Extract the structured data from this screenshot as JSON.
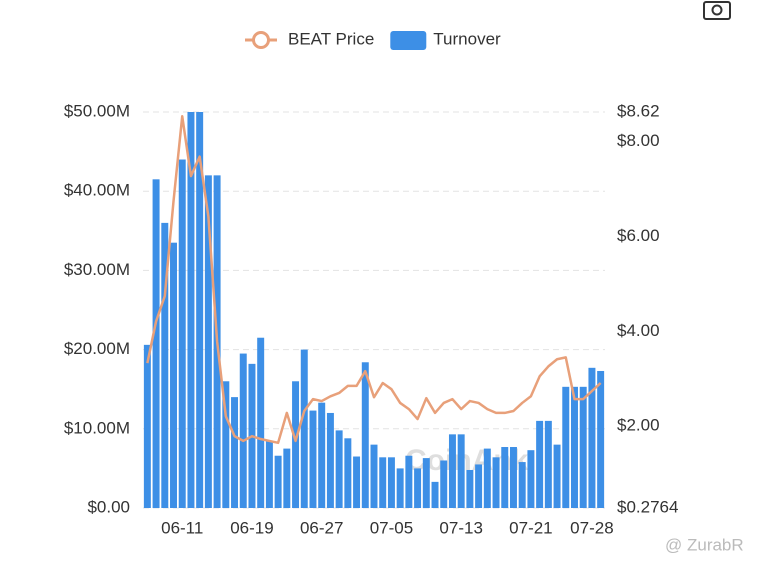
{
  "chart_data": {
    "type": "bar",
    "legend": "top",
    "watermark": "CoinAnk",
    "credit": "@ ZurabR",
    "categories": [
      null,
      null,
      null,
      null,
      "06-11",
      null,
      null,
      null,
      null,
      null,
      null,
      null,
      "06-19",
      null,
      null,
      null,
      null,
      null,
      null,
      null,
      "06-27",
      null,
      null,
      null,
      null,
      null,
      null,
      null,
      "07-05",
      null,
      null,
      null,
      null,
      null,
      null,
      null,
      "07-13",
      null,
      null,
      null,
      null,
      null,
      null,
      null,
      "07-21",
      null,
      null,
      null,
      null,
      null,
      null,
      "07-28",
      null
    ],
    "series": [
      {
        "name": "BEAT Price",
        "type": "line",
        "axis": "y2",
        "color": "#e8a07a",
        "values": [
          3.33,
          4.21,
          4.74,
          6.74,
          8.53,
          7.27,
          7.68,
          6.42,
          3.79,
          2.21,
          1.79,
          1.69,
          1.79,
          1.73,
          1.69,
          1.65,
          2.28,
          1.69,
          2.32,
          2.57,
          2.53,
          2.63,
          2.7,
          2.85,
          2.85,
          3.16,
          2.61,
          2.91,
          2.78,
          2.49,
          2.36,
          2.15,
          2.59,
          2.28,
          2.49,
          2.57,
          2.36,
          2.53,
          2.49,
          2.36,
          2.28,
          2.28,
          2.32,
          2.49,
          2.63,
          3.05,
          3.26,
          3.41,
          3.45,
          2.57,
          2.57,
          2.74,
          2.91
        ]
      },
      {
        "name": "Turnover",
        "type": "bar",
        "color": "#3d8fe6",
        "values": [
          20.6,
          41.5,
          36,
          33.5,
          44,
          50,
          50,
          42,
          42,
          16,
          14,
          19.5,
          18.2,
          21.5,
          8.5,
          6.6,
          7.5,
          16,
          20,
          12.3,
          13.3,
          12,
          9.8,
          8.8,
          6.5,
          18.4,
          8,
          6.4,
          6.4,
          5,
          6.6,
          5,
          6.3,
          3.3,
          6,
          9.3,
          9.3,
          4.8,
          5.5,
          7.5,
          6.4,
          7.7,
          7.7,
          5.8,
          7.3,
          11,
          11,
          8,
          15.3,
          15.3,
          15.3,
          17.7,
          17.3
        ]
      }
    ],
    "ylim": [
      0,
      50
    ],
    "yticks": [
      {
        "value": 0,
        "label": "$0.00"
      },
      {
        "value": 10,
        "label": "$10.00M"
      },
      {
        "value": 20,
        "label": "$20.00M"
      },
      {
        "value": 30,
        "label": "$30.00M"
      },
      {
        "value": 40,
        "label": "$40.00M"
      },
      {
        "value": 50,
        "label": "$50.00M"
      }
    ],
    "y2lim": [
      0.2764,
      8.62
    ],
    "y2ticks": [
      {
        "value": 0.2764,
        "label": "$0.2764"
      },
      {
        "value": 2,
        "label": "$2.00"
      },
      {
        "value": 4,
        "label": "$4.00"
      },
      {
        "value": 6,
        "label": "$6.00"
      },
      {
        "value": 8,
        "label": "$8.00"
      },
      {
        "value": 8.62,
        "label": "$8.62"
      }
    ],
    "grid": true
  }
}
